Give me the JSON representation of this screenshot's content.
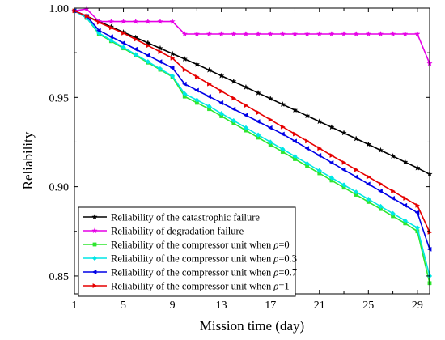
{
  "chart_data": {
    "type": "line",
    "xlabel": "Mission time (day)",
    "ylabel": "Reliability",
    "xlim": [
      1,
      30
    ],
    "ylim": [
      0.84,
      1.0
    ],
    "xticks": [
      1,
      5,
      9,
      13,
      17,
      21,
      25,
      29
    ],
    "yticks": [
      0.85,
      0.9,
      0.95,
      1.0
    ],
    "ytick_labels": [
      "0.85",
      "0.90",
      "0.95",
      "1.00"
    ],
    "grid": false,
    "legend_position": "bottom-left",
    "series": [
      {
        "name_parts": [
          "Reliability of the catastrophic failure"
        ],
        "color": "#000000",
        "marker": "star",
        "x": [
          1,
          2,
          3,
          4,
          5,
          6,
          7,
          8,
          9,
          10,
          11,
          12,
          13,
          14,
          15,
          16,
          17,
          18,
          19,
          20,
          21,
          22,
          23,
          24,
          25,
          26,
          27,
          28,
          29,
          30
        ],
        "y": [
          0.9985,
          0.9955,
          0.9925,
          0.9895,
          0.9865,
          0.9835,
          0.9805,
          0.9775,
          0.9745,
          0.9715,
          0.9685,
          0.9653,
          0.9621,
          0.9589,
          0.9557,
          0.9525,
          0.9493,
          0.9461,
          0.9429,
          0.9397,
          0.9365,
          0.9333,
          0.9301,
          0.9269,
          0.9237,
          0.9204,
          0.9171,
          0.9138,
          0.9105,
          0.907
        ]
      },
      {
        "name_parts": [
          "Reliability of degradation failure"
        ],
        "color": "#e600e6",
        "marker": "star",
        "x": [
          1,
          2,
          3,
          4,
          5,
          6,
          7,
          8,
          9,
          10,
          11,
          12,
          13,
          14,
          15,
          16,
          17,
          18,
          19,
          20,
          21,
          22,
          23,
          24,
          25,
          26,
          27,
          28,
          29,
          30
        ],
        "y": [
          0.9985,
          0.9995,
          0.9925,
          0.9925,
          0.9925,
          0.9925,
          0.9925,
          0.9925,
          0.9925,
          0.9855,
          0.9855,
          0.9855,
          0.9855,
          0.9855,
          0.9855,
          0.9855,
          0.9855,
          0.9855,
          0.9855,
          0.9855,
          0.9855,
          0.9855,
          0.9855,
          0.9855,
          0.9855,
          0.9855,
          0.9855,
          0.9855,
          0.9855,
          0.969
        ]
      },
      {
        "name_parts": [
          "Reliability of the compressor unit when ",
          "ρ",
          "=0"
        ],
        "color": "#2ee62e",
        "marker": "square",
        "x": [
          1,
          2,
          3,
          4,
          5,
          6,
          7,
          8,
          9,
          10,
          11,
          12,
          13,
          14,
          15,
          16,
          17,
          18,
          19,
          20,
          21,
          22,
          23,
          24,
          25,
          26,
          27,
          28,
          29,
          30
        ],
        "y": [
          0.9985,
          0.9945,
          0.9855,
          0.9815,
          0.9775,
          0.9735,
          0.9695,
          0.9655,
          0.9615,
          0.9505,
          0.947,
          0.9435,
          0.9395,
          0.9355,
          0.9315,
          0.9275,
          0.9235,
          0.9195,
          0.9155,
          0.9115,
          0.9075,
          0.9035,
          0.8995,
          0.8955,
          0.8915,
          0.8875,
          0.8835,
          0.8795,
          0.875,
          0.846
        ]
      },
      {
        "name_parts": [
          "Reliability of the compressor unit when ",
          "ρ",
          "=0.3"
        ],
        "color": "#00e6e6",
        "marker": "diamond",
        "x": [
          1,
          2,
          3,
          4,
          5,
          6,
          7,
          8,
          9,
          10,
          11,
          12,
          13,
          14,
          15,
          16,
          17,
          18,
          19,
          20,
          21,
          22,
          23,
          24,
          25,
          26,
          27,
          28,
          29,
          30
        ],
        "y": [
          0.9985,
          0.9945,
          0.986,
          0.982,
          0.978,
          0.974,
          0.97,
          0.966,
          0.962,
          0.952,
          0.9485,
          0.945,
          0.941,
          0.937,
          0.933,
          0.929,
          0.925,
          0.921,
          0.917,
          0.913,
          0.909,
          0.905,
          0.901,
          0.897,
          0.893,
          0.889,
          0.885,
          0.881,
          0.877,
          0.85
        ]
      },
      {
        "name_parts": [
          "Reliability of the compressor unit when ",
          "ρ",
          "=0.7"
        ],
        "color": "#0000e6",
        "marker": "triangle-left",
        "x": [
          1,
          2,
          3,
          4,
          5,
          6,
          7,
          8,
          9,
          10,
          11,
          12,
          13,
          14,
          15,
          16,
          17,
          18,
          19,
          20,
          21,
          22,
          23,
          24,
          25,
          26,
          27,
          28,
          29,
          30
        ],
        "y": [
          0.9985,
          0.9955,
          0.9875,
          0.984,
          0.9805,
          0.977,
          0.9735,
          0.97,
          0.9665,
          0.9575,
          0.954,
          0.9505,
          0.947,
          0.9435,
          0.94,
          0.9365,
          0.933,
          0.9295,
          0.9255,
          0.9215,
          0.9175,
          0.9135,
          0.9095,
          0.9055,
          0.9015,
          0.8975,
          0.8935,
          0.8895,
          0.8855,
          0.865
        ]
      },
      {
        "name_parts": [
          "Reliability of the compressor unit when ",
          "ρ",
          "=1"
        ],
        "color": "#e60000",
        "marker": "triangle-right",
        "x": [
          1,
          2,
          3,
          4,
          5,
          6,
          7,
          8,
          9,
          10,
          11,
          12,
          13,
          14,
          15,
          16,
          17,
          18,
          19,
          20,
          21,
          22,
          23,
          24,
          25,
          26,
          27,
          28,
          29,
          30
        ],
        "y": [
          0.9985,
          0.9955,
          0.992,
          0.989,
          0.986,
          0.9825,
          0.979,
          0.9755,
          0.972,
          0.9655,
          0.9615,
          0.9575,
          0.9535,
          0.9495,
          0.9455,
          0.9415,
          0.9375,
          0.9335,
          0.9295,
          0.9255,
          0.9215,
          0.9175,
          0.9135,
          0.9095,
          0.9055,
          0.9015,
          0.8975,
          0.8935,
          0.8895,
          0.8745
        ]
      }
    ]
  }
}
